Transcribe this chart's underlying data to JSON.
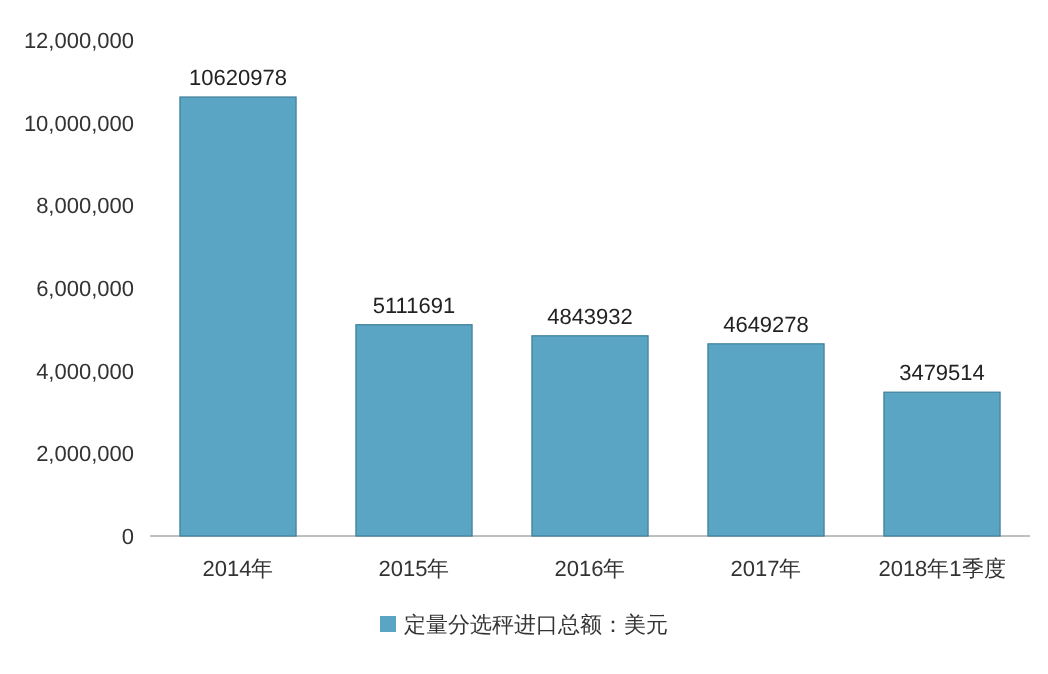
{
  "chart_data": {
    "type": "bar",
    "categories": [
      "2014年",
      "2015年",
      "2016年",
      "2017年",
      "2018年1季度"
    ],
    "series": [
      {
        "name": "定量分选秤进口总额：美元",
        "color": "#5aa5c4",
        "values": [
          10620978,
          5111691,
          4843932,
          4649278,
          3479514
        ]
      }
    ],
    "ylim": [
      0,
      12000000
    ],
    "yticks": [
      0,
      {
        "value": 2000000,
        "label": "2,000,000"
      },
      {
        "value": 4000000,
        "label": "4,000,000"
      },
      {
        "value": 6000000,
        "label": "6,000,000"
      },
      {
        "value": 8000000,
        "label": "8,000,000"
      },
      {
        "value": 10000000,
        "label": "10,000,000"
      },
      {
        "value": 12000000,
        "label": "12,000,000"
      }
    ],
    "data_labels": true,
    "legend": "bottom"
  }
}
